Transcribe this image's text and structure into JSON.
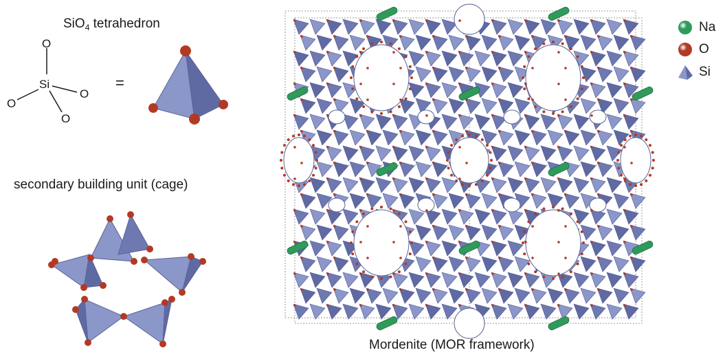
{
  "panels": {
    "sio4": {
      "title_prefix": "SiO",
      "title_sub": "4",
      "title_suffix": " tetrahedron",
      "atom_center": "Si",
      "atom_o": "O",
      "equals": "="
    },
    "sbu": {
      "title": "secondary building unit (cage)"
    },
    "mor": {
      "title": "Mordenite (MOR framework)"
    }
  },
  "legend": [
    {
      "label": "Na",
      "color": "#2f9a5a",
      "shape": "sphere"
    },
    {
      "label": "O",
      "color": "#b23a24",
      "shape": "sphere"
    },
    {
      "label": "Si",
      "color": "#7f8cc0",
      "shape": "tetrahedron"
    }
  ],
  "colors": {
    "tetra": "#7f8cc0",
    "tetra_dark": "#59639a",
    "oxygen": "#b23a24",
    "sodium": "#2f9a5a",
    "box": "#9a9a9a"
  }
}
